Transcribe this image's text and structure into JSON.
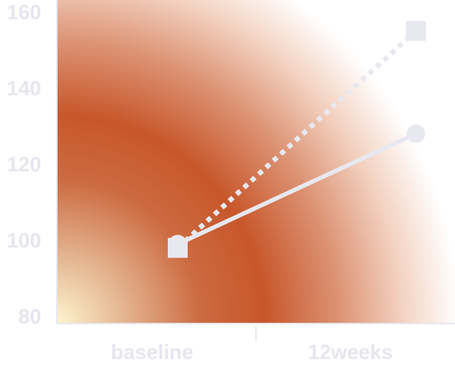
{
  "chart_data": {
    "type": "line",
    "title": "",
    "xlabel": "",
    "ylabel": "",
    "categories": [
      "baseline",
      "12weeks"
    ],
    "ylim": [
      80,
      165
    ],
    "yticks": [
      80,
      100,
      120,
      140,
      160
    ],
    "grid": false,
    "legend": "none",
    "series": [
      {
        "style": "solid",
        "marker": "circle",
        "color": "#e8e8f0",
        "values": [
          99,
          128
        ]
      },
      {
        "style": "dotted",
        "marker": "square",
        "color": "#e8e8f0",
        "values": [
          98,
          155
        ]
      }
    ],
    "colors": {
      "background_warm": "#c8572b",
      "background_light": "#fdf5cf",
      "axis": "#e6e6ef",
      "tick_text": "#e6e6ef"
    }
  }
}
